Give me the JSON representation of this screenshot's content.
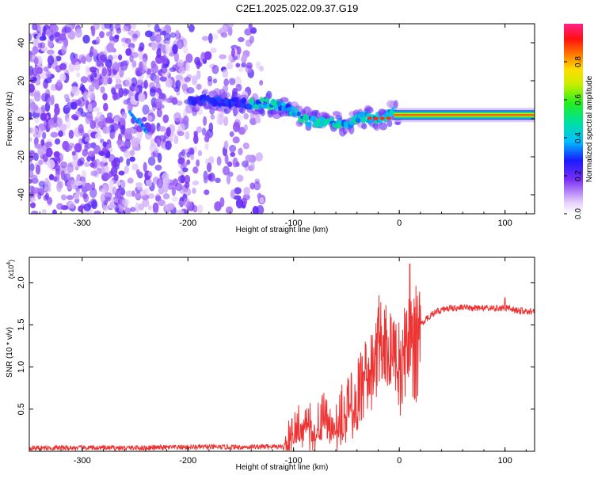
{
  "title": "C2E1.2025.022.09.37.G19",
  "chart_data": [
    {
      "type": "heatmap",
      "xlabel": "Height of straight line (km)",
      "ylabel": "Frequency (Hz)",
      "xlim": [
        -350,
        128
      ],
      "ylim": [
        -50,
        50
      ],
      "xticks": [
        -300,
        -200,
        -100,
        0,
        100
      ],
      "yticks": [
        -40,
        -20,
        0,
        20,
        40
      ],
      "colorbar": {
        "label": "Normalized spectral amplitude",
        "range": [
          0,
          1
        ],
        "ticks": [
          0.0,
          0.2,
          0.4,
          0.6,
          0.8
        ]
      },
      "ridge": {
        "x": [
          -195,
          -175,
          -150,
          -125,
          -110,
          -100,
          -90,
          -80,
          -70,
          -60,
          -50,
          -45,
          -40,
          -30,
          -20,
          -10,
          -5,
          0,
          20,
          60,
          100,
          128
        ],
        "y": [
          10,
          9,
          8,
          8,
          6,
          4,
          0,
          -2,
          -1,
          -2,
          -3,
          -2,
          0,
          1,
          0,
          2,
          4,
          2,
          2,
          2,
          2,
          2
        ]
      },
      "grid": false
    },
    {
      "type": "line",
      "xlabel": "Height of straight line (km)",
      "ylabel": "SNR (10 * v/v)",
      "yscale_label": "(x10",
      "yscale_exp": "4",
      "xlim": [
        -350,
        128
      ],
      "ylim": [
        0,
        2.3
      ],
      "xticks": [
        -300,
        -200,
        -100,
        0,
        100
      ],
      "yticks": [
        0.5,
        1.0,
        1.5,
        2.0
      ],
      "series": [
        {
          "color": "#ee3333",
          "x": [
            -350,
            -300,
            -250,
            -200,
            -150,
            -110,
            -100,
            -90,
            -80,
            -70,
            -60,
            -50,
            -40,
            -30,
            -25,
            -20,
            -15,
            -10,
            -5,
            0,
            5,
            10,
            15,
            20,
            30,
            40,
            50,
            60,
            70,
            80,
            90,
            100,
            110,
            120,
            128
          ],
          "y": [
            0.04,
            0.04,
            0.04,
            0.05,
            0.05,
            0.06,
            0.2,
            0.3,
            0.25,
            0.35,
            0.3,
            0.45,
            0.6,
            1.0,
            1.1,
            1.3,
            1.25,
            1.35,
            1.1,
            1.2,
            1.3,
            1.5,
            1.4,
            1.5,
            1.62,
            1.68,
            1.7,
            1.7,
            1.7,
            1.7,
            1.69,
            1.7,
            1.67,
            1.66,
            1.66
          ]
        }
      ],
      "grid": false
    }
  ]
}
